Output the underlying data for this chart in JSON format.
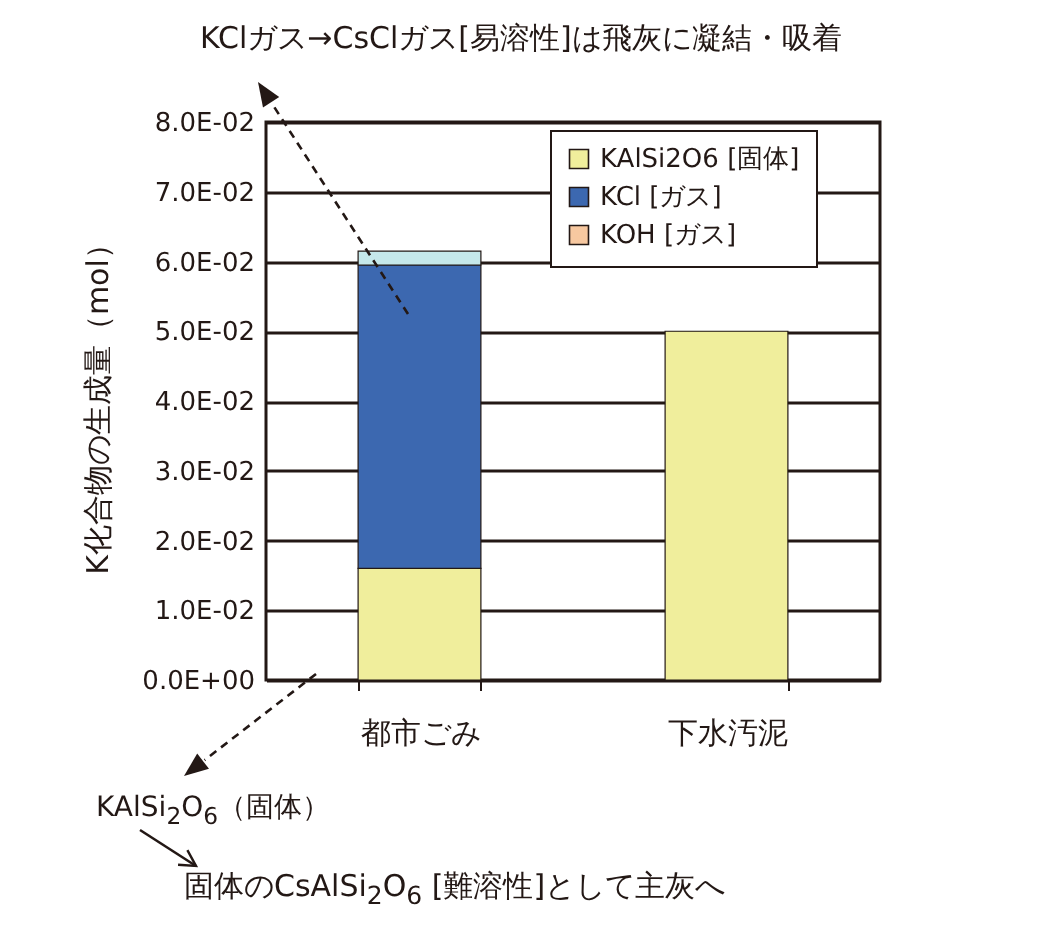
{
  "chart_data": {
    "type": "bar",
    "stacked": true,
    "ylabel": "K化合物の生成量（mol）",
    "categories": [
      "都市ごみ",
      "下水汚泥"
    ],
    "series": [
      {
        "name": "KAlSi2O6 [固体]",
        "color": "#f0ee9c",
        "values": [
          0.016,
          0.05
        ]
      },
      {
        "name": "KCl [ガス]",
        "color": "#3c68b0",
        "values": [
          0.0435,
          null
        ]
      },
      {
        "color": "#c5e8ea",
        "values": [
          0.002,
          null
        ]
      },
      {
        "name": "KOH [ガス]",
        "color": "#f7c8a0",
        "values": [
          null,
          null
        ]
      }
    ],
    "ylim": [
      0,
      0.08
    ],
    "yticks": [
      {
        "value": 0,
        "label": "0.0E+00"
      },
      {
        "value": 0.01,
        "label": "1.0E-02"
      },
      {
        "value": 0.02,
        "label": "2.0E-02"
      },
      {
        "value": 0.03,
        "label": "3.0E-02"
      },
      {
        "value": 0.04,
        "label": "4.0E-02"
      },
      {
        "value": 0.05,
        "label": "5.0E-02"
      },
      {
        "value": 0.06,
        "label": "6.0E-02"
      },
      {
        "value": 0.07,
        "label": "7.0E-02"
      },
      {
        "value": 0.08,
        "label": "8.0E-02"
      }
    ],
    "grid": "y",
    "legend": "top right",
    "annotations": [
      "KClガス→CsClガス[易溶性]は飛灰に凝結・吸着",
      "KAlSi$_{2}$O$_{6}$（固体）",
      "固体のCsAlSi$_{2}$O$_{6}$ [難溶性]として主灰へ"
    ]
  }
}
